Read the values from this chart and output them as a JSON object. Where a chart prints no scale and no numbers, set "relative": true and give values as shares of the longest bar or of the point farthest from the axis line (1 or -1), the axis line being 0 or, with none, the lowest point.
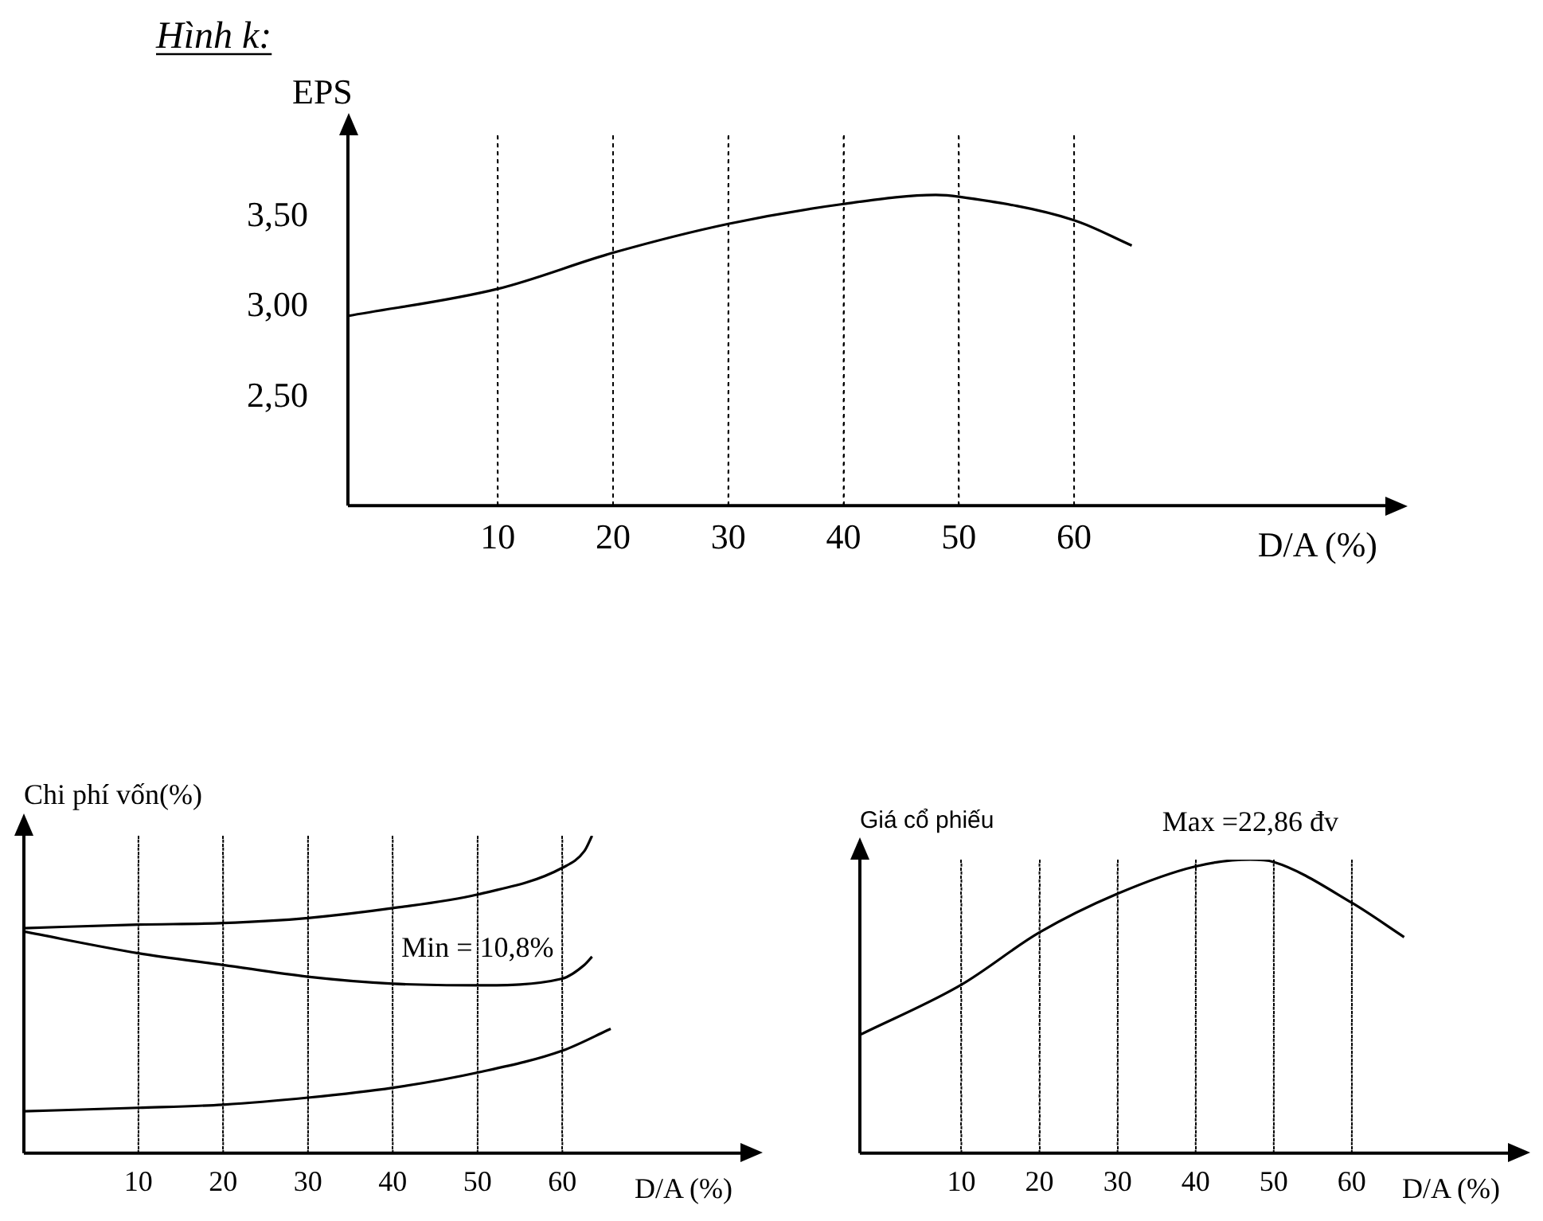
{
  "chart_data": [
    {
      "type": "line",
      "title": "Hình k:",
      "ylabel": "EPS",
      "xlabel": "D/A (%)",
      "xlim": [
        -3,
        87
      ],
      "xticks": [
        10,
        20,
        30,
        40,
        50,
        60
      ],
      "ylim": [
        1.9,
        3.95
      ],
      "yticks": [
        {
          "value": 2.5,
          "label": "2,50"
        },
        {
          "value": 3,
          "label": "3,00"
        },
        {
          "value": 3.5,
          "label": "3,50"
        }
      ],
      "grid": "x",
      "marker": "none",
      "series": [
        {
          "color": "#000000",
          "x": [
            -3,
            10,
            20,
            30,
            40,
            48,
            50,
            60,
            65
          ],
          "values": [
            2.95,
            3.1,
            3.3,
            3.46,
            3.57,
            3.62,
            3.61,
            3.48,
            3.34
          ]
        }
      ]
    },
    {
      "type": "line",
      "ylabel": "Chi phí vốn(%)",
      "xlabel": "D/A (%)",
      "relative": true,
      "xlim": [
        -3.5,
        81
      ],
      "xticks": [
        10,
        20,
        30,
        40,
        50,
        60
      ],
      "grid": "x",
      "marker": "none",
      "annotations": [
        {
          "text": "Min = 10,8%",
          "x": 50,
          "y": 0.529
        }
      ],
      "series": [
        {
          "color": "#000000",
          "x": [
            -3.5,
            10,
            20,
            30,
            40,
            50,
            60,
            62.6,
            63.5
          ],
          "values": [
            0.709,
            0.72,
            0.725,
            0.741,
            0.772,
            0.815,
            0.899,
            0.952,
            1
          ]
        },
        {
          "color": "#000000",
          "x": [
            -3.5,
            10,
            20,
            30,
            40,
            50,
            60,
            62.6,
            63.5
          ],
          "values": [
            0.698,
            0.63,
            0.593,
            0.556,
            0.534,
            0.529,
            0.55,
            0.593,
            0.619
          ]
        },
        {
          "color": "#000000",
          "x": [
            -3.5,
            10,
            20,
            30,
            40,
            50,
            60,
            65.7
          ],
          "values": [
            0.132,
            0.143,
            0.153,
            0.175,
            0.206,
            0.254,
            0.323,
            0.392
          ]
        }
      ]
    },
    {
      "type": "line",
      "ylabel": "Giá cổ phiếu",
      "xlabel": "D/A (%)",
      "relative": true,
      "xlim": [
        -3,
        80
      ],
      "xticks": [
        10,
        20,
        30,
        40,
        50,
        60
      ],
      "grid": "x",
      "marker": "none",
      "annotations": [
        {
          "text": "Max =22,86 đv",
          "x": 47,
          "y": 1
        }
      ],
      "series": [
        {
          "color": "#000000",
          "x": [
            -3,
            10,
            20,
            30,
            40,
            47,
            50,
            60,
            66.7
          ],
          "values": [
            0.403,
            0.574,
            0.752,
            0.884,
            0.977,
            1,
            0.992,
            0.853,
            0.736
          ]
        }
      ]
    }
  ]
}
